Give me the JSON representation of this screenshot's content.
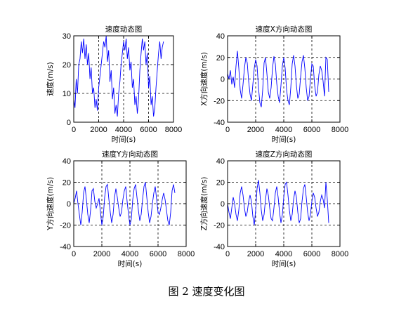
{
  "figure_caption": "图 2  速度变化图",
  "chart_data": [
    {
      "type": "line",
      "title": "速度动态图",
      "xlabel": "时间(s)",
      "ylabel": "速度(m/s)",
      "xlim": [
        0,
        8000
      ],
      "ylim": [
        0,
        30
      ],
      "xticks": [
        0,
        2000,
        4000,
        6000,
        8000
      ],
      "yticks": [
        0,
        10,
        20,
        30
      ],
      "grid": "dashed",
      "color": "#0000ff",
      "x": [
        0,
        100,
        200,
        300,
        400,
        500,
        600,
        700,
        800,
        900,
        1000,
        1100,
        1200,
        1300,
        1400,
        1500,
        1600,
        1700,
        1800,
        1900,
        2000,
        2100,
        2200,
        2300,
        2400,
        2500,
        2600,
        2700,
        2800,
        2900,
        3000,
        3100,
        3200,
        3300,
        3400,
        3500,
        3600,
        3700,
        3800,
        3900,
        4000,
        4100,
        4200,
        4300,
        4400,
        4500,
        4600,
        4700,
        4800,
        4900,
        5000,
        5100,
        5200,
        5300,
        5400,
        5500,
        5600,
        5700,
        5800,
        5900,
        6000,
        6100,
        6200,
        6300,
        6400,
        6500,
        6600,
        6700,
        6800,
        6900,
        7000,
        7100,
        7200
      ],
      "y": [
        8,
        5,
        15,
        10,
        20,
        22,
        28,
        24,
        29,
        22,
        27,
        20,
        24,
        15,
        19,
        10,
        12,
        5,
        8,
        4,
        12,
        16,
        20,
        24,
        28,
        26,
        30,
        21,
        25,
        14,
        18,
        8,
        12,
        3,
        6,
        2,
        10,
        14,
        20,
        24,
        28,
        25,
        29,
        22,
        26,
        18,
        21,
        12,
        15,
        6,
        9,
        3,
        8,
        18,
        24,
        29,
        25,
        28,
        20,
        24,
        12,
        16,
        6,
        9,
        2,
        5,
        12,
        18,
        24,
        28,
        22,
        26,
        28
      ]
    },
    {
      "type": "line",
      "title": "速度X方向动态图",
      "xlabel": "时间(s)",
      "ylabel": "X方向速度(m/s)",
      "xlim": [
        0,
        8000
      ],
      "ylim": [
        -40,
        40
      ],
      "xticks": [
        0,
        2000,
        4000,
        6000,
        8000
      ],
      "yticks": [
        -40,
        -20,
        0,
        20,
        40
      ],
      "grid": "dashed",
      "color": "#0000ff",
      "x": [
        0,
        100,
        200,
        300,
        400,
        500,
        600,
        700,
        800,
        900,
        1000,
        1100,
        1200,
        1300,
        1400,
        1500,
        1600,
        1700,
        1800,
        1900,
        2000,
        2100,
        2200,
        2300,
        2400,
        2500,
        2600,
        2700,
        2800,
        2900,
        3000,
        3100,
        3200,
        3300,
        3400,
        3500,
        3600,
        3700,
        3800,
        3900,
        4000,
        4100,
        4200,
        4300,
        4400,
        4500,
        4600,
        4700,
        4800,
        4900,
        5000,
        5100,
        5200,
        5300,
        5400,
        5500,
        5600,
        5700,
        5800,
        5900,
        6000,
        6100,
        6200,
        6300,
        6400,
        6500,
        6600,
        6700,
        6800,
        6900,
        7000,
        7100,
        7200
      ],
      "y": [
        5,
        0,
        8,
        -5,
        2,
        -8,
        12,
        26,
        10,
        -10,
        -18,
        -5,
        10,
        20,
        15,
        -2,
        -14,
        -20,
        -5,
        10,
        18,
        12,
        -8,
        -22,
        -26,
        -10,
        15,
        20,
        5,
        -12,
        -18,
        -8,
        10,
        21,
        14,
        -4,
        -16,
        -22,
        -6,
        12,
        20,
        10,
        -10,
        -20,
        -24,
        -8,
        14,
        22,
        12,
        -6,
        -18,
        -14,
        2,
        16,
        22,
        10,
        -8,
        -20,
        -16,
        0,
        14,
        12,
        -6,
        -16,
        -12,
        4,
        12,
        8,
        -2,
        -16,
        20,
        18,
        -12
      ]
    },
    {
      "type": "line",
      "title": "速度Y方向动态图",
      "xlabel": "时间(s)",
      "ylabel": "Y方向速度(m/s)",
      "xlim": [
        0,
        8000
      ],
      "ylim": [
        -40,
        40
      ],
      "xticks": [
        0,
        2000,
        4000,
        6000,
        8000
      ],
      "yticks": [
        -40,
        -20,
        0,
        20,
        40
      ],
      "grid": "dashed",
      "color": "#0000ff",
      "x": [
        0,
        100,
        200,
        300,
        400,
        500,
        600,
        700,
        800,
        900,
        1000,
        1100,
        1200,
        1300,
        1400,
        1500,
        1600,
        1700,
        1800,
        1900,
        2000,
        2100,
        2200,
        2300,
        2400,
        2500,
        2600,
        2700,
        2800,
        2900,
        3000,
        3100,
        3200,
        3300,
        3400,
        3500,
        3600,
        3700,
        3800,
        3900,
        4000,
        4100,
        4200,
        4300,
        4400,
        4500,
        4600,
        4700,
        4800,
        4900,
        5000,
        5100,
        5200,
        5300,
        5400,
        5500,
        5600,
        5700,
        5800,
        5900,
        6000,
        6100,
        6200,
        6300,
        6400,
        6500,
        6600,
        6700,
        6800,
        6900,
        7000,
        7100,
        7200
      ],
      "y": [
        0,
        5,
        12,
        0,
        -10,
        -20,
        -8,
        10,
        16,
        4,
        -10,
        -18,
        -6,
        12,
        14,
        2,
        -4,
        0,
        5,
        -8,
        -20,
        -12,
        6,
        16,
        18,
        4,
        -8,
        -18,
        -10,
        6,
        14,
        6,
        -4,
        -12,
        -8,
        4,
        12,
        16,
        2,
        -10,
        -20,
        -14,
        4,
        14,
        18,
        6,
        -6,
        -16,
        -10,
        4,
        16,
        20,
        6,
        -8,
        -18,
        -12,
        0,
        10,
        16,
        4,
        -8,
        -10,
        -4,
        4,
        10,
        4,
        -6,
        -16,
        -20,
        -8,
        12,
        18,
        10
      ]
    },
    {
      "type": "line",
      "title": "速度Z方向动态图",
      "xlabel": "时间(s)",
      "ylabel": "Z方向速度(m/s)",
      "xlim": [
        0,
        8000
      ],
      "ylim": [
        -40,
        40
      ],
      "xticks": [
        0,
        2000,
        4000,
        6000,
        8000
      ],
      "yticks": [
        -40,
        -20,
        0,
        20,
        40
      ],
      "grid": "dashed",
      "color": "#0000ff",
      "x": [
        0,
        100,
        200,
        300,
        400,
        500,
        600,
        700,
        800,
        900,
        1000,
        1100,
        1200,
        1300,
        1400,
        1500,
        1600,
        1700,
        1800,
        1900,
        2000,
        2100,
        2200,
        2300,
        2400,
        2500,
        2600,
        2700,
        2800,
        2900,
        3000,
        3100,
        3200,
        3300,
        3400,
        3500,
        3600,
        3700,
        3800,
        3900,
        4000,
        4100,
        4200,
        4300,
        4400,
        4500,
        4600,
        4700,
        4800,
        4900,
        5000,
        5100,
        5200,
        5300,
        5400,
        5500,
        5600,
        5700,
        5800,
        5900,
        6000,
        6100,
        6200,
        6300,
        6400,
        6500,
        6600,
        6700,
        6800,
        6900,
        7000,
        7100,
        7200
      ],
      "y": [
        0,
        -8,
        -14,
        -4,
        6,
        0,
        -10,
        -16,
        -6,
        10,
        16,
        8,
        -4,
        -12,
        -8,
        2,
        8,
        2,
        -12,
        -20,
        -6,
        14,
        22,
        10,
        -6,
        -16,
        -10,
        4,
        14,
        8,
        -4,
        -14,
        -16,
        -4,
        10,
        16,
        6,
        -8,
        -18,
        -10,
        6,
        18,
        20,
        8,
        -6,
        -16,
        -10,
        4,
        12,
        6,
        -8,
        -18,
        -14,
        2,
        14,
        18,
        6,
        -8,
        -16,
        -10,
        2,
        10,
        6,
        -4,
        -12,
        -8,
        2,
        8,
        4,
        -4,
        20,
        4,
        -18
      ]
    }
  ]
}
